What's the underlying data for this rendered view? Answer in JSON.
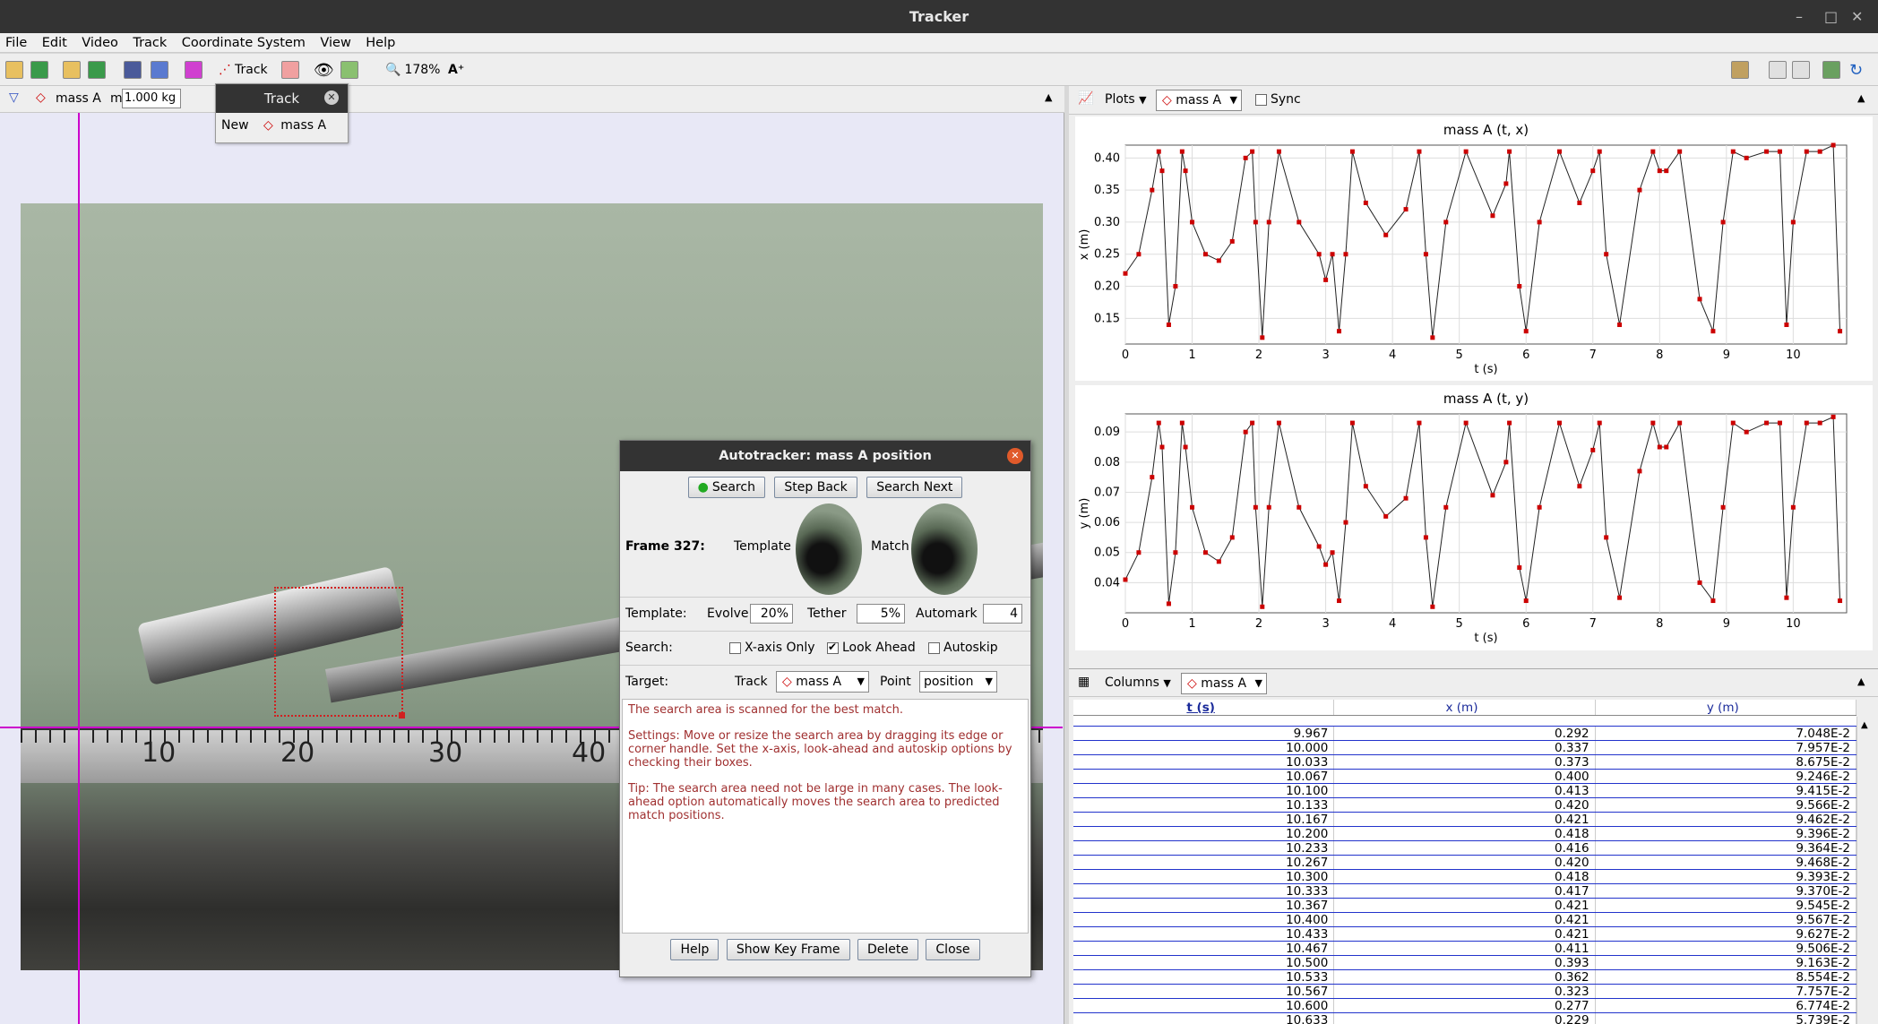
{
  "window": {
    "title": "Tracker"
  },
  "menu": [
    "File",
    "Edit",
    "Video",
    "Track",
    "Coordinate System",
    "View",
    "Help"
  ],
  "toolbar": {
    "track_label": "Track",
    "zoom": "178%"
  },
  "trackbar": {
    "track_name": "mass A",
    "mass_label": "m",
    "mass_value": "1.000 kg"
  },
  "track_popup": {
    "title": "Track",
    "new_label": "New",
    "track_name": "mass A"
  },
  "autotracker": {
    "title": "Autotracker: mass A position",
    "buttons": {
      "search": "Search",
      "step_back": "Step Back",
      "search_next": "Search Next"
    },
    "frame_label": "Frame 327:",
    "template_label": "Template",
    "match_label": "Match",
    "template_row": {
      "label": "Template:",
      "evolve_label": "Evolve",
      "evolve": "20%",
      "tether_label": "Tether",
      "tether": "5%",
      "automark_label": "Automark",
      "automark": "4"
    },
    "search_row": {
      "label": "Search:",
      "xaxis": "X-axis Only",
      "lookahead": "Look Ahead",
      "autoskip": "Autoskip"
    },
    "target_row": {
      "label": "Target:",
      "track_label": "Track",
      "track": "mass A",
      "point_label": "Point",
      "point": "position"
    },
    "info": [
      "The search area is scanned for the best match.",
      "Settings: Move or resize the search area by dragging its edge or corner handle. Set the x-axis, look-ahead and autoskip options by checking their boxes.",
      "Tip: The search area need not be large in many cases. The look-ahead option automatically moves the search area to predicted match positions."
    ],
    "footer": {
      "help": "Help",
      "show_key": "Show Key Frame",
      "delete": "Delete",
      "close": "Close"
    }
  },
  "plots_panel": {
    "plots_label": "Plots",
    "track": "mass A",
    "sync": "Sync"
  },
  "chart_data": [
    {
      "type": "line",
      "title": "mass A (t, x)",
      "xlabel": "t (s)",
      "ylabel": "x (m)",
      "xlim": [
        0,
        10.8
      ],
      "ylim": [
        0.11,
        0.42
      ],
      "xticks": [
        "0",
        "1",
        "2",
        "3",
        "4",
        "5",
        "6",
        "7",
        "8",
        "9",
        "10"
      ],
      "yticks": [
        "0.15",
        "0.20",
        "0.25",
        "0.30",
        "0.35",
        "0.40"
      ],
      "series": [
        {
          "x": [
            0,
            0.2,
            0.4,
            0.5,
            0.55,
            0.65,
            0.75,
            0.85,
            0.9,
            1.0,
            1.2,
            1.4,
            1.6,
            1.8,
            1.9,
            1.95,
            2.05,
            2.15,
            2.3,
            2.6,
            2.9,
            3.0,
            3.1,
            3.2,
            3.3,
            3.4,
            3.6,
            3.9,
            4.2,
            4.4,
            4.5,
            4.6,
            4.8,
            5.1,
            5.5,
            5.7,
            5.75,
            5.9,
            6.0,
            6.2,
            6.5,
            6.8,
            7.0,
            7.1,
            7.2,
            7.4,
            7.7,
            7.9,
            8.0,
            8.1,
            8.3,
            8.6,
            8.8,
            8.95,
            9.1,
            9.3,
            9.6,
            9.8,
            9.9,
            10.0,
            10.2,
            10.4,
            10.6,
            10.7
          ],
          "y": [
            0.22,
            0.25,
            0.35,
            0.41,
            0.38,
            0.14,
            0.2,
            0.41,
            0.38,
            0.3,
            0.25,
            0.24,
            0.27,
            0.4,
            0.41,
            0.3,
            0.12,
            0.3,
            0.41,
            0.3,
            0.25,
            0.21,
            0.25,
            0.13,
            0.25,
            0.41,
            0.33,
            0.28,
            0.32,
            0.41,
            0.25,
            0.12,
            0.3,
            0.41,
            0.31,
            0.36,
            0.41,
            0.2,
            0.13,
            0.3,
            0.41,
            0.33,
            0.38,
            0.41,
            0.25,
            0.14,
            0.35,
            0.41,
            0.38,
            0.38,
            0.41,
            0.18,
            0.13,
            0.3,
            0.41,
            0.4,
            0.41,
            0.41,
            0.14,
            0.3,
            0.41,
            0.41,
            0.42,
            0.13
          ]
        }
      ]
    },
    {
      "type": "line",
      "title": "mass A (t, y)",
      "xlabel": "t (s)",
      "ylabel": "y (m)",
      "xlim": [
        0,
        10.8
      ],
      "ylim": [
        0.03,
        0.096
      ],
      "xticks": [
        "0",
        "1",
        "2",
        "3",
        "4",
        "5",
        "6",
        "7",
        "8",
        "9",
        "10"
      ],
      "yticks": [
        "0.04",
        "0.05",
        "0.06",
        "0.07",
        "0.08",
        "0.09"
      ],
      "series": [
        {
          "x": [
            0,
            0.2,
            0.4,
            0.5,
            0.55,
            0.65,
            0.75,
            0.85,
            0.9,
            1.0,
            1.2,
            1.4,
            1.6,
            1.8,
            1.9,
            1.95,
            2.05,
            2.15,
            2.3,
            2.6,
            2.9,
            3.0,
            3.1,
            3.2,
            3.3,
            3.4,
            3.6,
            3.9,
            4.2,
            4.4,
            4.5,
            4.6,
            4.8,
            5.1,
            5.5,
            5.7,
            5.75,
            5.9,
            6.0,
            6.2,
            6.5,
            6.8,
            7.0,
            7.1,
            7.2,
            7.4,
            7.7,
            7.9,
            8.0,
            8.1,
            8.3,
            8.6,
            8.8,
            8.95,
            9.1,
            9.3,
            9.6,
            9.8,
            9.9,
            10.0,
            10.2,
            10.4,
            10.6,
            10.7
          ],
          "y": [
            0.041,
            0.05,
            0.075,
            0.093,
            0.085,
            0.033,
            0.05,
            0.093,
            0.085,
            0.065,
            0.05,
            0.047,
            0.055,
            0.09,
            0.093,
            0.065,
            0.032,
            0.065,
            0.093,
            0.065,
            0.052,
            0.046,
            0.05,
            0.034,
            0.06,
            0.093,
            0.072,
            0.062,
            0.068,
            0.093,
            0.055,
            0.032,
            0.065,
            0.093,
            0.069,
            0.08,
            0.093,
            0.045,
            0.034,
            0.065,
            0.093,
            0.072,
            0.084,
            0.093,
            0.055,
            0.035,
            0.077,
            0.093,
            0.085,
            0.085,
            0.093,
            0.04,
            0.034,
            0.065,
            0.093,
            0.09,
            0.093,
            0.093,
            0.035,
            0.065,
            0.093,
            0.093,
            0.095,
            0.034
          ]
        }
      ]
    }
  ],
  "table_panel": {
    "columns_label": "Columns",
    "track": "mass A"
  },
  "table": {
    "headers": [
      "t (s)",
      "x (m)",
      "y (m)"
    ],
    "rows": [
      [
        "9.967",
        "0.292",
        "7.048E-2"
      ],
      [
        "10.000",
        "0.337",
        "7.957E-2"
      ],
      [
        "10.033",
        "0.373",
        "8.675E-2"
      ],
      [
        "10.067",
        "0.400",
        "9.246E-2"
      ],
      [
        "10.100",
        "0.413",
        "9.415E-2"
      ],
      [
        "10.133",
        "0.420",
        "9.566E-2"
      ],
      [
        "10.167",
        "0.421",
        "9.462E-2"
      ],
      [
        "10.200",
        "0.418",
        "9.396E-2"
      ],
      [
        "10.233",
        "0.416",
        "9.364E-2"
      ],
      [
        "10.267",
        "0.420",
        "9.468E-2"
      ],
      [
        "10.300",
        "0.418",
        "9.393E-2"
      ],
      [
        "10.333",
        "0.417",
        "9.370E-2"
      ],
      [
        "10.367",
        "0.421",
        "9.545E-2"
      ],
      [
        "10.400",
        "0.421",
        "9.567E-2"
      ],
      [
        "10.433",
        "0.421",
        "9.627E-2"
      ],
      [
        "10.467",
        "0.411",
        "9.506E-2"
      ],
      [
        "10.500",
        "0.393",
        "9.163E-2"
      ],
      [
        "10.533",
        "0.362",
        "8.554E-2"
      ],
      [
        "10.567",
        "0.323",
        "7.757E-2"
      ],
      [
        "10.600",
        "0.277",
        "6.774E-2"
      ],
      [
        "10.633",
        "0.229",
        "5.739E-2"
      ]
    ]
  },
  "ruler": {
    "labels": [
      "10",
      "20",
      "30",
      "40"
    ]
  },
  "colors": {
    "accent": "#cc0000",
    "axis_line": "#cc00cc"
  }
}
